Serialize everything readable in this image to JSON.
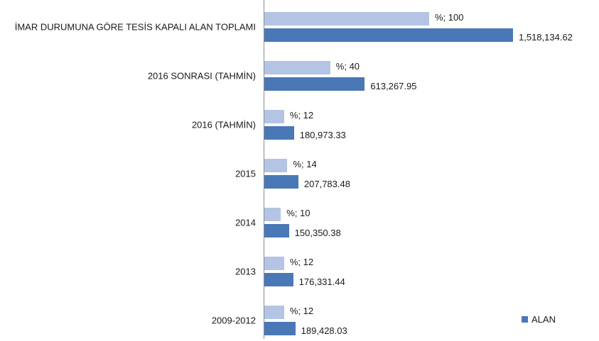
{
  "chart_data": {
    "type": "bar",
    "orientation": "horizontal",
    "categories": [
      "İMAR DURUMUNA GÖRE TESİS KAPALI ALAN TOPLAMI",
      "2016 SONRASI (TAHMİN)",
      "2016 (TAHMİN)",
      "2015",
      "2014",
      "2013",
      "2009-2012"
    ],
    "series": [
      {
        "color": "#b4c4e4",
        "values": [
          100,
          40,
          12,
          14,
          10,
          12,
          12
        ],
        "value_labels": [
          "%; 100",
          "%; 40",
          "%; 12",
          "%; 14",
          "%; 10",
          "%; 12",
          "%; 12"
        ]
      },
      {
        "name": "ALAN",
        "color": "#4a78b6",
        "values": [
          1518134.62,
          613267.95,
          180973.33,
          207783.48,
          150350.38,
          176331.44,
          189428.03
        ],
        "value_labels": [
          "1,518,134.62",
          "613,267.95",
          "180,973.33",
          "207,783.48",
          "150,350.38",
          "176,331.44",
          "189,428.03"
        ]
      }
    ],
    "legend": "bottom-right"
  }
}
